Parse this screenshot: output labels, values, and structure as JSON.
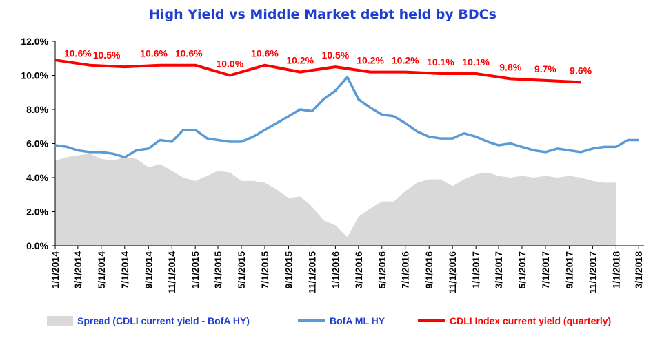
{
  "chart_data": {
    "type": "line",
    "title": "High Yield  vs  Middle Market debt held by BDCs",
    "xlabel": "",
    "ylabel": "",
    "ylim": [
      0,
      12
    ],
    "yticks": [
      "0.0%",
      "2.0%",
      "4.0%",
      "6.0%",
      "8.0%",
      "10.0%",
      "12.0%"
    ],
    "xticks": [
      "1/1/2014",
      "3/1/2014",
      "5/1/2014",
      "7/1/2014",
      "9/1/2014",
      "11/1/2014",
      "1/1/2015",
      "3/1/2015",
      "5/1/2015",
      "7/1/2015",
      "9/1/2015",
      "11/1/2015",
      "1/1/2016",
      "3/1/2016",
      "5/1/2016",
      "7/1/2016",
      "9/1/2016",
      "11/1/2016",
      "1/1/2017",
      "3/1/2017",
      "5/1/2017",
      "7/1/2017",
      "9/1/2017",
      "11/1/2017",
      "1/1/2018",
      "3/1/2018"
    ],
    "xrange": [
      "2014-01-01",
      "2018-03-15"
    ],
    "colors": {
      "title": "#1f3fcf",
      "spread": "#d9d9d9",
      "bofa": "#5b9bd5",
      "cdli": "#ff0000",
      "labels": "#ff0000"
    },
    "legend": {
      "position": "bottom"
    },
    "series": [
      {
        "name": "Spread (CDLI current yield - BofA HY)",
        "kind": "area",
        "points": [
          [
            "2014-01-01",
            5.0
          ],
          [
            "2014-02-01",
            5.2
          ],
          [
            "2014-03-01",
            5.3
          ],
          [
            "2014-04-01",
            5.4
          ],
          [
            "2014-05-01",
            5.1
          ],
          [
            "2014-06-01",
            5.0
          ],
          [
            "2014-07-01",
            5.2
          ],
          [
            "2014-08-01",
            5.1
          ],
          [
            "2014-09-01",
            4.6
          ],
          [
            "2014-10-01",
            4.8
          ],
          [
            "2014-11-01",
            4.4
          ],
          [
            "2014-12-01",
            4.0
          ],
          [
            "2015-01-01",
            3.8
          ],
          [
            "2015-02-01",
            4.1
          ],
          [
            "2015-03-01",
            4.4
          ],
          [
            "2015-04-01",
            4.3
          ],
          [
            "2015-05-01",
            3.8
          ],
          [
            "2015-06-01",
            3.8
          ],
          [
            "2015-07-01",
            3.7
          ],
          [
            "2015-08-01",
            3.3
          ],
          [
            "2015-09-01",
            2.8
          ],
          [
            "2015-10-01",
            2.9
          ],
          [
            "2015-11-01",
            2.3
          ],
          [
            "2015-12-01",
            1.5
          ],
          [
            "2016-01-01",
            1.2
          ],
          [
            "2016-02-01",
            0.5
          ],
          [
            "2016-03-01",
            1.7
          ],
          [
            "2016-04-01",
            2.2
          ],
          [
            "2016-05-01",
            2.6
          ],
          [
            "2016-06-01",
            2.6
          ],
          [
            "2016-07-01",
            3.2
          ],
          [
            "2016-08-01",
            3.7
          ],
          [
            "2016-09-01",
            3.9
          ],
          [
            "2016-10-01",
            3.9
          ],
          [
            "2016-11-01",
            3.5
          ],
          [
            "2016-12-01",
            3.9
          ],
          [
            "2017-01-01",
            4.2
          ],
          [
            "2017-02-01",
            4.3
          ],
          [
            "2017-03-01",
            4.1
          ],
          [
            "2017-04-01",
            4.0
          ],
          [
            "2017-05-01",
            4.1
          ],
          [
            "2017-06-01",
            4.0
          ],
          [
            "2017-07-01",
            4.1
          ],
          [
            "2017-08-01",
            4.0
          ],
          [
            "2017-09-01",
            4.1
          ],
          [
            "2017-10-01",
            4.0
          ],
          [
            "2017-11-01",
            3.8
          ],
          [
            "2017-12-01",
            3.7
          ],
          [
            "2018-01-01",
            3.7
          ]
        ]
      },
      {
        "name": "BofA ML HY",
        "kind": "line",
        "points": [
          [
            "2014-01-01",
            5.9
          ],
          [
            "2014-02-01",
            5.8
          ],
          [
            "2014-03-01",
            5.6
          ],
          [
            "2014-04-01",
            5.5
          ],
          [
            "2014-05-01",
            5.5
          ],
          [
            "2014-06-01",
            5.4
          ],
          [
            "2014-07-01",
            5.2
          ],
          [
            "2014-08-01",
            5.6
          ],
          [
            "2014-09-01",
            5.7
          ],
          [
            "2014-10-01",
            6.2
          ],
          [
            "2014-11-01",
            6.1
          ],
          [
            "2014-12-01",
            6.8
          ],
          [
            "2015-01-01",
            6.8
          ],
          [
            "2015-02-01",
            6.3
          ],
          [
            "2015-03-01",
            6.2
          ],
          [
            "2015-04-01",
            6.1
          ],
          [
            "2015-05-01",
            6.1
          ],
          [
            "2015-06-01",
            6.4
          ],
          [
            "2015-07-01",
            6.8
          ],
          [
            "2015-08-01",
            7.2
          ],
          [
            "2015-09-01",
            7.6
          ],
          [
            "2015-10-01",
            8.0
          ],
          [
            "2015-11-01",
            7.9
          ],
          [
            "2015-12-01",
            8.6
          ],
          [
            "2016-01-01",
            9.1
          ],
          [
            "2016-02-01",
            9.9
          ],
          [
            "2016-03-01",
            8.6
          ],
          [
            "2016-04-01",
            8.1
          ],
          [
            "2016-05-01",
            7.7
          ],
          [
            "2016-06-01",
            7.6
          ],
          [
            "2016-07-01",
            7.2
          ],
          [
            "2016-08-01",
            6.7
          ],
          [
            "2016-09-01",
            6.4
          ],
          [
            "2016-10-01",
            6.3
          ],
          [
            "2016-11-01",
            6.3
          ],
          [
            "2016-12-01",
            6.6
          ],
          [
            "2017-01-01",
            6.4
          ],
          [
            "2017-02-01",
            6.1
          ],
          [
            "2017-03-01",
            5.9
          ],
          [
            "2017-04-01",
            6.0
          ],
          [
            "2017-05-01",
            5.8
          ],
          [
            "2017-06-01",
            5.6
          ],
          [
            "2017-07-01",
            5.5
          ],
          [
            "2017-08-01",
            5.7
          ],
          [
            "2017-09-01",
            5.6
          ],
          [
            "2017-10-01",
            5.5
          ],
          [
            "2017-11-01",
            5.7
          ],
          [
            "2017-12-01",
            5.8
          ],
          [
            "2018-01-01",
            5.8
          ],
          [
            "2018-02-01",
            6.2
          ],
          [
            "2018-03-01",
            6.2
          ]
        ]
      },
      {
        "name": "CDLI Index current yield (quarterly)",
        "kind": "line",
        "points": [
          [
            "2014-01-01",
            10.9
          ],
          [
            "2014-04-01",
            10.6
          ],
          [
            "2014-07-01",
            10.5
          ],
          [
            "2014-10-01",
            10.6
          ],
          [
            "2015-01-01",
            10.6
          ],
          [
            "2015-04-01",
            10.0
          ],
          [
            "2015-07-01",
            10.6
          ],
          [
            "2015-10-01",
            10.2
          ],
          [
            "2016-01-01",
            10.5
          ],
          [
            "2016-04-01",
            10.2
          ],
          [
            "2016-07-01",
            10.2
          ],
          [
            "2016-10-01",
            10.1
          ],
          [
            "2017-01-01",
            10.1
          ],
          [
            "2017-04-01",
            9.8
          ],
          [
            "2017-07-01",
            9.7
          ],
          [
            "2017-10-01",
            9.6
          ]
        ],
        "data_labels": [
          {
            "date": "2014-03-01",
            "value": 10.6,
            "text": "10.6%"
          },
          {
            "date": "2014-05-15",
            "value": 10.5,
            "text": "10.5%"
          },
          {
            "date": "2014-09-15",
            "value": 10.6,
            "text": "10.6%"
          },
          {
            "date": "2014-12-15",
            "value": 10.6,
            "text": "10.6%"
          },
          {
            "date": "2015-04-01",
            "value": 10.0,
            "text": "10.0%"
          },
          {
            "date": "2015-07-01",
            "value": 10.6,
            "text": "10.6%"
          },
          {
            "date": "2015-10-01",
            "value": 10.2,
            "text": "10.2%"
          },
          {
            "date": "2016-01-01",
            "value": 10.5,
            "text": "10.5%"
          },
          {
            "date": "2016-04-01",
            "value": 10.2,
            "text": "10.2%"
          },
          {
            "date": "2016-07-01",
            "value": 10.2,
            "text": "10.2%"
          },
          {
            "date": "2016-10-01",
            "value": 10.1,
            "text": "10.1%"
          },
          {
            "date": "2017-01-01",
            "value": 10.1,
            "text": "10.1%"
          },
          {
            "date": "2017-04-01",
            "value": 9.8,
            "text": "9.8%"
          },
          {
            "date": "2017-07-01",
            "value": 9.7,
            "text": "9.7%"
          },
          {
            "date": "2017-10-01",
            "value": 9.6,
            "text": "9.6%"
          }
        ]
      }
    ]
  }
}
